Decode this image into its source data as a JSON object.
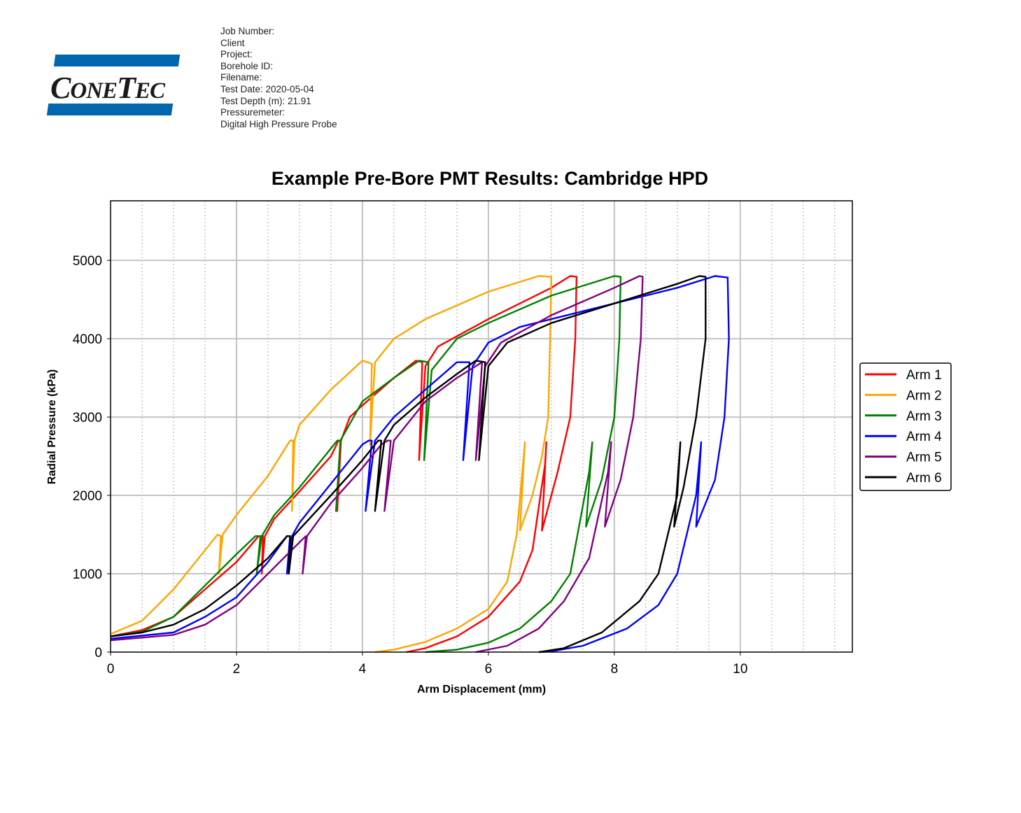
{
  "header": {
    "logo_text": "CONETEC",
    "fields": [
      "Job Number:",
      "Client",
      "Project:",
      "Borehole ID:",
      "Filename:",
      "Test Date: 2020-05-04",
      "Test Depth (m): 21.91",
      "Pressuremeter:",
      "Digital High Pressure Probe"
    ]
  },
  "chart_data": {
    "type": "line",
    "title": "Example Pre-Bore PMT Results: Cambridge HPD",
    "xlabel": "Arm Displacement (mm)",
    "ylabel": "Radial Pressure (kPa)",
    "xlim": [
      0,
      11.78
    ],
    "ylim": [
      0,
      5760
    ],
    "xticks": [
      0,
      2,
      4,
      6,
      8,
      10
    ],
    "yticks": [
      0,
      1000,
      2000,
      3000,
      4000,
      5000
    ],
    "minor_x_grid_step": 0.5,
    "grid": true,
    "legend_position": "right",
    "series": [
      {
        "name": "Arm 1",
        "color": "#ff0000",
        "points": [
          [
            0,
            200
          ],
          [
            0.5,
            280
          ],
          [
            1,
            450
          ],
          [
            1.5,
            800
          ],
          [
            2,
            1150
          ],
          [
            2.35,
            1480
          ],
          [
            2.42,
            1480
          ],
          [
            2.4,
            1000
          ],
          [
            2.45,
            1480
          ],
          [
            2.6,
            1700
          ],
          [
            3,
            2050
          ],
          [
            3.5,
            2500
          ],
          [
            3.62,
            2700
          ],
          [
            3.66,
            2700
          ],
          [
            3.6,
            1800
          ],
          [
            3.66,
            2700
          ],
          [
            3.8,
            3000
          ],
          [
            4,
            3150
          ],
          [
            4.5,
            3500
          ],
          [
            4.85,
            3720
          ],
          [
            4.95,
            3700
          ],
          [
            4.9,
            2450
          ],
          [
            5,
            3650
          ],
          [
            5.2,
            3900
          ],
          [
            6,
            4250
          ],
          [
            7,
            4650
          ],
          [
            7.3,
            4800
          ],
          [
            7.4,
            4790
          ],
          [
            7.38,
            4000
          ],
          [
            7.3,
            3000
          ],
          [
            7.1,
            2300
          ],
          [
            6.85,
            1550
          ],
          [
            6.92,
            2680
          ],
          [
            6.9,
            2400
          ],
          [
            6.7,
            1300
          ],
          [
            6.5,
            900
          ],
          [
            6,
            450
          ],
          [
            5.5,
            200
          ],
          [
            5,
            50
          ],
          [
            4.7,
            0
          ]
        ]
      },
      {
        "name": "Arm 2",
        "color": "#ffa500",
        "points": [
          [
            0,
            230
          ],
          [
            0.5,
            400
          ],
          [
            1,
            800
          ],
          [
            1.7,
            1500
          ],
          [
            1.75,
            1480
          ],
          [
            1.72,
            1000
          ],
          [
            1.78,
            1500
          ],
          [
            2,
            1750
          ],
          [
            2.5,
            2250
          ],
          [
            2.85,
            2700
          ],
          [
            2.9,
            2700
          ],
          [
            2.88,
            1800
          ],
          [
            2.92,
            2700
          ],
          [
            3,
            2900
          ],
          [
            3.5,
            3350
          ],
          [
            4,
            3720
          ],
          [
            4.15,
            3680
          ],
          [
            4.12,
            2650
          ],
          [
            4.2,
            3700
          ],
          [
            4.5,
            4000
          ],
          [
            5,
            4250
          ],
          [
            6,
            4600
          ],
          [
            6.8,
            4800
          ],
          [
            7,
            4790
          ],
          [
            6.98,
            4000
          ],
          [
            6.95,
            3000
          ],
          [
            6.85,
            2500
          ],
          [
            6.7,
            2000
          ],
          [
            6.5,
            1550
          ],
          [
            6.58,
            2680
          ],
          [
            6.55,
            2400
          ],
          [
            6.45,
            1500
          ],
          [
            6.3,
            900
          ],
          [
            6,
            550
          ],
          [
            5.5,
            300
          ],
          [
            5,
            130
          ],
          [
            4.5,
            30
          ],
          [
            4.2,
            0
          ]
        ]
      },
      {
        "name": "Arm 3",
        "color": "#008000",
        "points": [
          [
            0,
            200
          ],
          [
            0.5,
            260
          ],
          [
            1,
            450
          ],
          [
            1.5,
            850
          ],
          [
            2,
            1250
          ],
          [
            2.3,
            1480
          ],
          [
            2.38,
            1480
          ],
          [
            2.32,
            1000
          ],
          [
            2.4,
            1480
          ],
          [
            2.6,
            1750
          ],
          [
            3,
            2100
          ],
          [
            3.6,
            2700
          ],
          [
            3.65,
            2700
          ],
          [
            3.58,
            1800
          ],
          [
            3.65,
            2700
          ],
          [
            4,
            3200
          ],
          [
            4.5,
            3500
          ],
          [
            4.9,
            3720
          ],
          [
            5.05,
            3700
          ],
          [
            4.98,
            2450
          ],
          [
            5.1,
            3600
          ],
          [
            5.5,
            4000
          ],
          [
            6,
            4200
          ],
          [
            7,
            4550
          ],
          [
            8,
            4800
          ],
          [
            8.1,
            4790
          ],
          [
            8.08,
            4000
          ],
          [
            8,
            3000
          ],
          [
            7.8,
            2200
          ],
          [
            7.55,
            1600
          ],
          [
            7.65,
            2680
          ],
          [
            7.6,
            2300
          ],
          [
            7.3,
            1000
          ],
          [
            7,
            650
          ],
          [
            6.5,
            300
          ],
          [
            6,
            120
          ],
          [
            5.5,
            30
          ],
          [
            5,
            0
          ]
        ]
      },
      {
        "name": "Arm 4",
        "color": "#0000ff",
        "points": [
          [
            0,
            170
          ],
          [
            1,
            250
          ],
          [
            1.5,
            450
          ],
          [
            2,
            700
          ],
          [
            2.5,
            1150
          ],
          [
            2.8,
            1480
          ],
          [
            2.85,
            1480
          ],
          [
            2.8,
            1000
          ],
          [
            2.88,
            1480
          ],
          [
            3,
            1650
          ],
          [
            3.5,
            2150
          ],
          [
            4,
            2650
          ],
          [
            4.1,
            2700
          ],
          [
            4.15,
            2700
          ],
          [
            4.05,
            1800
          ],
          [
            4.2,
            2700
          ],
          [
            4.5,
            3000
          ],
          [
            5,
            3350
          ],
          [
            5.5,
            3700
          ],
          [
            5.7,
            3700
          ],
          [
            5.6,
            2450
          ],
          [
            5.75,
            3650
          ],
          [
            6,
            3950
          ],
          [
            6.5,
            4150
          ],
          [
            7,
            4250
          ],
          [
            8,
            4450
          ],
          [
            9,
            4650
          ],
          [
            9.6,
            4800
          ],
          [
            9.8,
            4780
          ],
          [
            9.82,
            4000
          ],
          [
            9.75,
            3000
          ],
          [
            9.6,
            2200
          ],
          [
            9.3,
            1600
          ],
          [
            9.38,
            2680
          ],
          [
            9.3,
            2000
          ],
          [
            9,
            1000
          ],
          [
            8.7,
            600
          ],
          [
            8.2,
            300
          ],
          [
            7.5,
            80
          ],
          [
            7,
            10
          ],
          [
            6.8,
            0
          ]
        ]
      },
      {
        "name": "Arm 5",
        "color": "#800080",
        "points": [
          [
            0,
            150
          ],
          [
            1,
            220
          ],
          [
            1.5,
            350
          ],
          [
            2,
            600
          ],
          [
            2.5,
            1000
          ],
          [
            3,
            1400
          ],
          [
            3.1,
            1480
          ],
          [
            3.05,
            1000
          ],
          [
            3.12,
            1480
          ],
          [
            3.5,
            1900
          ],
          [
            4,
            2350
          ],
          [
            4.3,
            2650
          ],
          [
            4.4,
            2700
          ],
          [
            4.45,
            2700
          ],
          [
            4.35,
            1800
          ],
          [
            4.5,
            2700
          ],
          [
            5,
            3200
          ],
          [
            5.5,
            3500
          ],
          [
            5.9,
            3700
          ],
          [
            5.8,
            2450
          ],
          [
            5.95,
            3650
          ],
          [
            6.2,
            3950
          ],
          [
            7,
            4300
          ],
          [
            8,
            4650
          ],
          [
            8.4,
            4800
          ],
          [
            8.45,
            4790
          ],
          [
            8.42,
            4000
          ],
          [
            8.3,
            3000
          ],
          [
            8.1,
            2200
          ],
          [
            7.85,
            1600
          ],
          [
            7.95,
            2680
          ],
          [
            7.9,
            2300
          ],
          [
            7.6,
            1200
          ],
          [
            7.2,
            650
          ],
          [
            6.8,
            300
          ],
          [
            6.3,
            80
          ],
          [
            5.8,
            0
          ]
        ]
      },
      {
        "name": "Arm 6",
        "color": "#000000",
        "points": [
          [
            0,
            200
          ],
          [
            0.5,
            250
          ],
          [
            1,
            350
          ],
          [
            1.5,
            550
          ],
          [
            2,
            850
          ],
          [
            2.5,
            1200
          ],
          [
            2.8,
            1480
          ],
          [
            2.85,
            1480
          ],
          [
            2.83,
            1000
          ],
          [
            2.9,
            1480
          ],
          [
            3.5,
            2000
          ],
          [
            4,
            2450
          ],
          [
            4.25,
            2700
          ],
          [
            4.3,
            2700
          ],
          [
            4.2,
            1800
          ],
          [
            4.35,
            2700
          ],
          [
            4.5,
            2900
          ],
          [
            5,
            3250
          ],
          [
            5.5,
            3550
          ],
          [
            5.8,
            3720
          ],
          [
            5.95,
            3700
          ],
          [
            5.85,
            2450
          ],
          [
            6,
            3650
          ],
          [
            6.3,
            3950
          ],
          [
            7,
            4200
          ],
          [
            8,
            4450
          ],
          [
            9,
            4700
          ],
          [
            9.35,
            4800
          ],
          [
            9.45,
            4790
          ],
          [
            9.45,
            4000
          ],
          [
            9.3,
            3000
          ],
          [
            9.1,
            2100
          ],
          [
            8.95,
            1600
          ],
          [
            9.05,
            2680
          ],
          [
            9,
            2000
          ],
          [
            8.7,
            1000
          ],
          [
            8.4,
            650
          ],
          [
            7.8,
            250
          ],
          [
            7.2,
            50
          ],
          [
            6.8,
            0
          ]
        ]
      }
    ]
  }
}
